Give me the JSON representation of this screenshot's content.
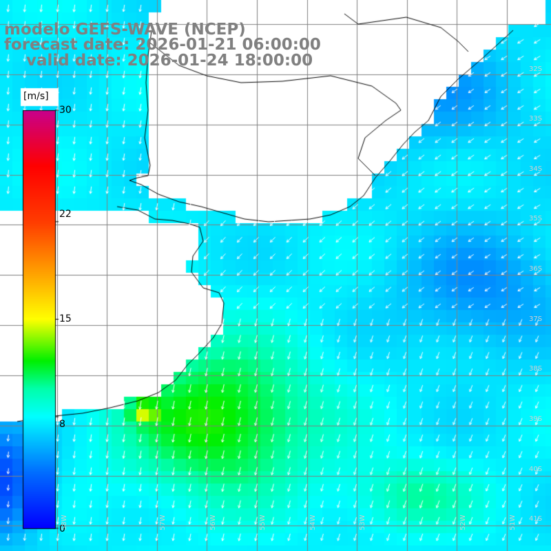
{
  "title": {
    "line1": "modelo GEFS-WAVE (NCEP)",
    "line2": "forecast date: 2026-01-21 06:00:00",
    "line3": "    valid date: 2026-01-24 18:00:00"
  },
  "colorbar": {
    "unit": "[m/s]",
    "ticks": [
      "30",
      "22",
      "15",
      "8",
      "0"
    ],
    "min": 0,
    "max": 30,
    "colors": [
      "#0000ff",
      "#00a0ff",
      "#00ffff",
      "#00ff00",
      "#ffff00",
      "#ff8000",
      "#ff0000",
      "#c00080"
    ]
  },
  "lat_labels": [
    "32S",
    "33S",
    "34S",
    "35S",
    "36S",
    "37S",
    "38S",
    "39S",
    "40S",
    "41S"
  ],
  "lon_labels": [
    "58W",
    "57W",
    "56W",
    "55W",
    "54W",
    "53W",
    "52W",
    "51W"
  ],
  "field_colors": {
    "land": "#ffffff",
    "coast": "#000000",
    "grid": "#808080",
    "arrow": "#ffffff"
  }
}
